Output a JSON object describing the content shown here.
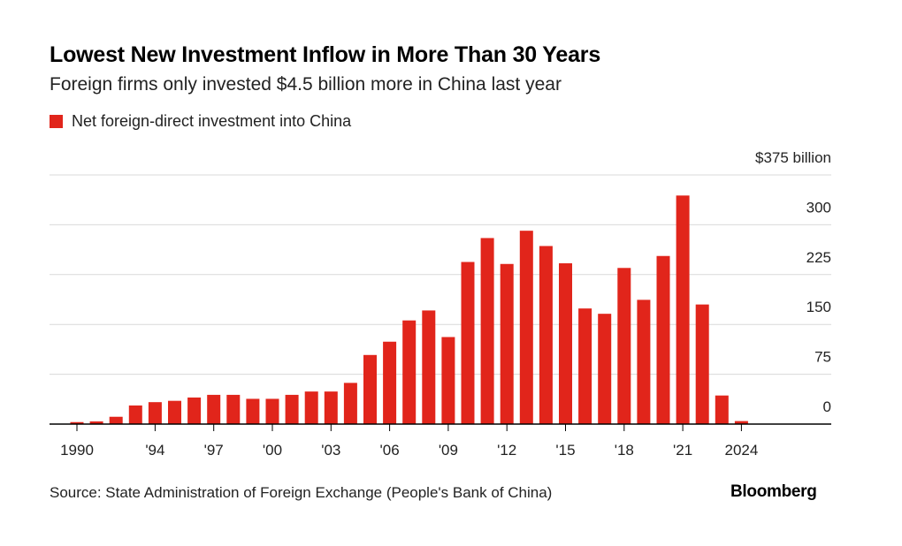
{
  "header": {
    "title": "Lowest New Investment Inflow in More Than 30 Years",
    "subtitle": "Foreign firms only invested $4.5 billion more in China last year"
  },
  "footer": {
    "source": "Source: State Administration of Foreign Exchange (People's Bank of China)",
    "brand": "Bloomberg"
  },
  "colors": {
    "bar": "#e1251b",
    "grid": "#d9d9d9",
    "axis": "#000000"
  },
  "chart_data": {
    "type": "bar",
    "title": "Lowest New Investment Inflow in More Than 30 Years",
    "subtitle": "Foreign firms only invested $4.5 billion more in China last year",
    "legend_position": "top-left",
    "grid": true,
    "ylim": [
      0,
      375
    ],
    "y_axis_side": "right",
    "y_ticks": [
      {
        "value": 375,
        "label": "$375 billion"
      },
      {
        "value": 300,
        "label": "300"
      },
      {
        "value": 225,
        "label": "225"
      },
      {
        "value": 150,
        "label": "150"
      },
      {
        "value": 75,
        "label": "75"
      },
      {
        "value": 0,
        "label": "0"
      }
    ],
    "x_ticks": [
      {
        "year": 1990,
        "label": "1990"
      },
      {
        "year": 1994,
        "label": "'94"
      },
      {
        "year": 1997,
        "label": "'97"
      },
      {
        "year": 2000,
        "label": "'00"
      },
      {
        "year": 2003,
        "label": "'03"
      },
      {
        "year": 2006,
        "label": "'06"
      },
      {
        "year": 2009,
        "label": "'09"
      },
      {
        "year": 2012,
        "label": "'12"
      },
      {
        "year": 2015,
        "label": "'15"
      },
      {
        "year": 2018,
        "label": "'18"
      },
      {
        "year": 2021,
        "label": "'21"
      },
      {
        "year": 2024,
        "label": "2024"
      }
    ],
    "categories": [
      1990,
      1991,
      1992,
      1993,
      1994,
      1995,
      1996,
      1997,
      1998,
      1999,
      2000,
      2001,
      2002,
      2003,
      2004,
      2005,
      2006,
      2007,
      2008,
      2009,
      2010,
      2011,
      2012,
      2013,
      2014,
      2015,
      2016,
      2017,
      2018,
      2019,
      2020,
      2021,
      2022,
      2023,
      2024
    ],
    "series": [
      {
        "name": "Net foreign-direct investment into China",
        "values": [
          3,
          4,
          11,
          28,
          33,
          35,
          40,
          44,
          44,
          38,
          38,
          44,
          49,
          49,
          62,
          104,
          124,
          156,
          171,
          131,
          244,
          280,
          241,
          291,
          268,
          242,
          174,
          166,
          235,
          187,
          253,
          344,
          180,
          43,
          4.5
        ]
      }
    ]
  }
}
